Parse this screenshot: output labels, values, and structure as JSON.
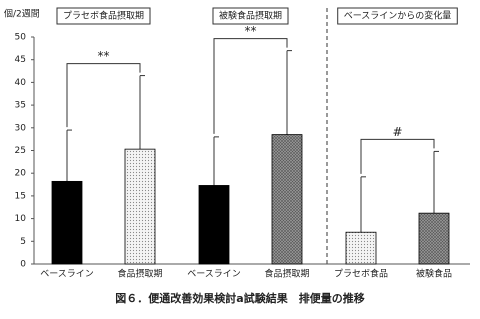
{
  "chart_data": {
    "type": "bar",
    "title": "図６．便通改善効果検討a試験結果　排便量の推移",
    "ylabel": "個/2週間",
    "groups": [
      "プラセボ食品摂取期",
      "被験食品摂取期",
      "ベースラインからの変化量"
    ],
    "categories": [
      "ベースライン",
      "食品摂取期",
      "ベースライン",
      "食品摂取期",
      "プラセボ食品",
      "被験食品"
    ],
    "values": [
      18.2,
      25.3,
      17.3,
      28.5,
      7.0,
      11.2
    ],
    "errors": [
      11.3,
      16.2,
      10.7,
      18.5,
      12.2,
      13.6
    ],
    "fills": [
      "solid",
      "dots",
      "solid",
      "crosshatch",
      "dots",
      "crosshatch"
    ],
    "color": "#000000",
    "annotations": [
      "**",
      "**",
      "#"
    ],
    "ylim": [
      0,
      50
    ],
    "yticks": [
      0,
      5,
      10,
      15,
      20,
      25,
      30,
      35,
      40,
      45,
      50
    ],
    "grid": false
  }
}
